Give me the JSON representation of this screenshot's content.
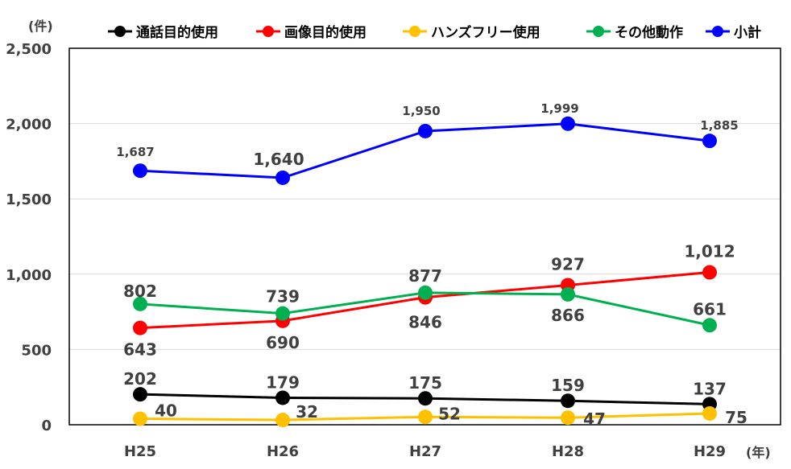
{
  "chart_data": {
    "type": "line",
    "y_unit": "(件)",
    "x_unit": "(年)",
    "categories": [
      "H25",
      "H26",
      "H27",
      "H28",
      "H29"
    ],
    "ylim": [
      0,
      2500
    ],
    "yticks": [
      0,
      500,
      1000,
      1500,
      2000,
      2500
    ],
    "ytick_labels": [
      "0",
      "500",
      "1,000",
      "1,500",
      "2,000",
      "2,500"
    ],
    "grid": true,
    "legend_position": "top",
    "series": [
      {
        "name": "通話目的使用",
        "color": "#000000",
        "values": [
          202,
          179,
          175,
          159,
          137
        ],
        "labels": [
          "202",
          "179",
          "175",
          "159",
          "137"
        ]
      },
      {
        "name": "画像目的使用",
        "color": "#ff0000",
        "values": [
          643,
          690,
          846,
          927,
          1012
        ],
        "labels": [
          "643",
          "690",
          "846",
          "927",
          "1,012"
        ]
      },
      {
        "name": "ハンズフリー使用",
        "color": "#ffc000",
        "values": [
          40,
          32,
          52,
          47,
          75
        ],
        "labels": [
          "40",
          "32",
          "52",
          "47",
          "75"
        ]
      },
      {
        "name": "その他動作",
        "color": "#00b050",
        "values": [
          802,
          739,
          877,
          866,
          661
        ],
        "labels": [
          "802",
          "739",
          "877",
          "866",
          "661"
        ]
      },
      {
        "name": "小計",
        "color": "#0000ff",
        "values": [
          1687,
          1640,
          1950,
          1999,
          1885
        ],
        "labels": [
          "1,687",
          "1,640",
          "1,950",
          "1,999",
          "1,885"
        ]
      }
    ]
  }
}
